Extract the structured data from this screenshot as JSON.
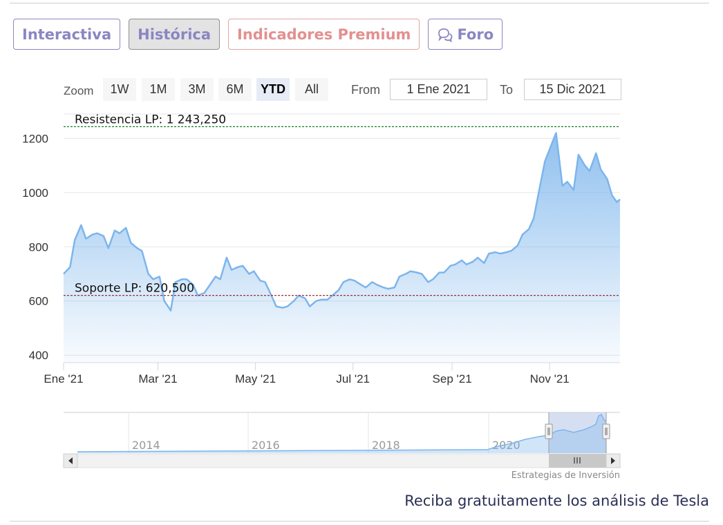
{
  "tabs": [
    {
      "label": "Interactiva"
    },
    {
      "label": "Histórica"
    },
    {
      "label": "Indicadores Premium"
    },
    {
      "label": "Foro"
    }
  ],
  "toolbar": {
    "zoom_label": "Zoom",
    "buttons": [
      "1W",
      "1M",
      "3M",
      "6M",
      "YTD",
      "All"
    ],
    "active": "YTD",
    "from_label": "From",
    "from_value": "1 Ene 2021",
    "to_label": "To",
    "to_value": "15 Dic 2021"
  },
  "colors": {
    "series_line": "#7cb5ec",
    "resistance": "#1a7a1a",
    "support": "#8b1a1a",
    "tab_purple": "#8a86c2",
    "tab_red": "#e39090"
  },
  "chart_data": {
    "type": "area",
    "yticks": [
      400,
      600,
      800,
      1000,
      1200
    ],
    "ylim": [
      375,
      1290
    ],
    "xlim": [
      "2021-01-01",
      "2021-12-15"
    ],
    "xticks": [
      {
        "date": "2021-01-01",
        "label": "Ene '21"
      },
      {
        "date": "2021-03-01",
        "label": "Mar '21"
      },
      {
        "date": "2021-05-01",
        "label": "May '21"
      },
      {
        "date": "2021-07-01",
        "label": "Jul '21"
      },
      {
        "date": "2021-09-01",
        "label": "Sep '21"
      },
      {
        "date": "2021-11-01",
        "label": "Nov '21"
      }
    ],
    "plotlines": [
      {
        "label": "Resistencia LP: 1 243,250",
        "value": 1243.25
      },
      {
        "label": "Soporte LP: 620,500",
        "value": 620.5
      }
    ],
    "series": [
      {
        "points": [
          [
            "2021-01-01",
            700
          ],
          [
            "2021-01-05",
            725
          ],
          [
            "2021-01-08",
            825
          ],
          [
            "2021-01-12",
            880
          ],
          [
            "2021-01-15",
            830
          ],
          [
            "2021-01-19",
            845
          ],
          [
            "2021-01-22",
            850
          ],
          [
            "2021-01-26",
            840
          ],
          [
            "2021-01-29",
            795
          ],
          [
            "2021-02-02",
            860
          ],
          [
            "2021-02-05",
            850
          ],
          [
            "2021-02-09",
            870
          ],
          [
            "2021-02-12",
            815
          ],
          [
            "2021-02-16",
            795
          ],
          [
            "2021-02-19",
            785
          ],
          [
            "2021-02-23",
            700
          ],
          [
            "2021-02-26",
            680
          ],
          [
            "2021-03-02",
            690
          ],
          [
            "2021-03-05",
            600
          ],
          [
            "2021-03-09",
            565
          ],
          [
            "2021-03-12",
            670
          ],
          [
            "2021-03-16",
            680
          ],
          [
            "2021-03-19",
            680
          ],
          [
            "2021-03-23",
            660
          ],
          [
            "2021-03-26",
            620
          ],
          [
            "2021-03-30",
            630
          ],
          [
            "2021-04-02",
            655
          ],
          [
            "2021-04-06",
            690
          ],
          [
            "2021-04-09",
            680
          ],
          [
            "2021-04-13",
            760
          ],
          [
            "2021-04-16",
            715
          ],
          [
            "2021-04-20",
            725
          ],
          [
            "2021-04-23",
            730
          ],
          [
            "2021-04-27",
            700
          ],
          [
            "2021-04-30",
            710
          ],
          [
            "2021-05-04",
            675
          ],
          [
            "2021-05-07",
            670
          ],
          [
            "2021-05-11",
            620
          ],
          [
            "2021-05-14",
            580
          ],
          [
            "2021-05-18",
            575
          ],
          [
            "2021-05-21",
            580
          ],
          [
            "2021-05-25",
            600
          ],
          [
            "2021-05-28",
            620
          ],
          [
            "2021-06-01",
            610
          ],
          [
            "2021-06-04",
            580
          ],
          [
            "2021-06-08",
            600
          ],
          [
            "2021-06-11",
            605
          ],
          [
            "2021-06-15",
            605
          ],
          [
            "2021-06-18",
            620
          ],
          [
            "2021-06-22",
            640
          ],
          [
            "2021-06-25",
            670
          ],
          [
            "2021-06-29",
            680
          ],
          [
            "2021-07-02",
            675
          ],
          [
            "2021-07-06",
            660
          ],
          [
            "2021-07-09",
            650
          ],
          [
            "2021-07-13",
            670
          ],
          [
            "2021-07-16",
            660
          ],
          [
            "2021-07-20",
            650
          ],
          [
            "2021-07-23",
            645
          ],
          [
            "2021-07-27",
            650
          ],
          [
            "2021-07-30",
            690
          ],
          [
            "2021-08-03",
            700
          ],
          [
            "2021-08-06",
            710
          ],
          [
            "2021-08-10",
            705
          ],
          [
            "2021-08-13",
            700
          ],
          [
            "2021-08-17",
            670
          ],
          [
            "2021-08-20",
            680
          ],
          [
            "2021-08-24",
            705
          ],
          [
            "2021-08-27",
            705
          ],
          [
            "2021-08-31",
            730
          ],
          [
            "2021-09-03",
            735
          ],
          [
            "2021-09-07",
            750
          ],
          [
            "2021-09-10",
            735
          ],
          [
            "2021-09-14",
            745
          ],
          [
            "2021-09-17",
            760
          ],
          [
            "2021-09-21",
            740
          ],
          [
            "2021-09-24",
            775
          ],
          [
            "2021-09-28",
            780
          ],
          [
            "2021-10-01",
            775
          ],
          [
            "2021-10-05",
            780
          ],
          [
            "2021-10-08",
            785
          ],
          [
            "2021-10-12",
            805
          ],
          [
            "2021-10-15",
            845
          ],
          [
            "2021-10-19",
            865
          ],
          [
            "2021-10-22",
            905
          ],
          [
            "2021-10-26",
            1025
          ],
          [
            "2021-10-29",
            1115
          ],
          [
            "2021-11-02",
            1175
          ],
          [
            "2021-11-05",
            1220
          ],
          [
            "2021-11-09",
            1025
          ],
          [
            "2021-11-12",
            1040
          ],
          [
            "2021-11-16",
            1010
          ],
          [
            "2021-11-19",
            1140
          ],
          [
            "2021-11-23",
            1100
          ],
          [
            "2021-11-26",
            1080
          ],
          [
            "2021-11-30",
            1145
          ],
          [
            "2021-12-03",
            1085
          ],
          [
            "2021-12-07",
            1050
          ],
          [
            "2021-12-10",
            990
          ],
          [
            "2021-12-13",
            965
          ],
          [
            "2021-12-15",
            975
          ]
        ]
      }
    ]
  },
  "navigator": {
    "year_labels": [
      "2014",
      "2016",
      "2018",
      "2020"
    ],
    "footer_label": "Estrategias de Inversión"
  },
  "footer": {
    "cta": "Reciba gratuitamente los análisis de Tesla"
  }
}
